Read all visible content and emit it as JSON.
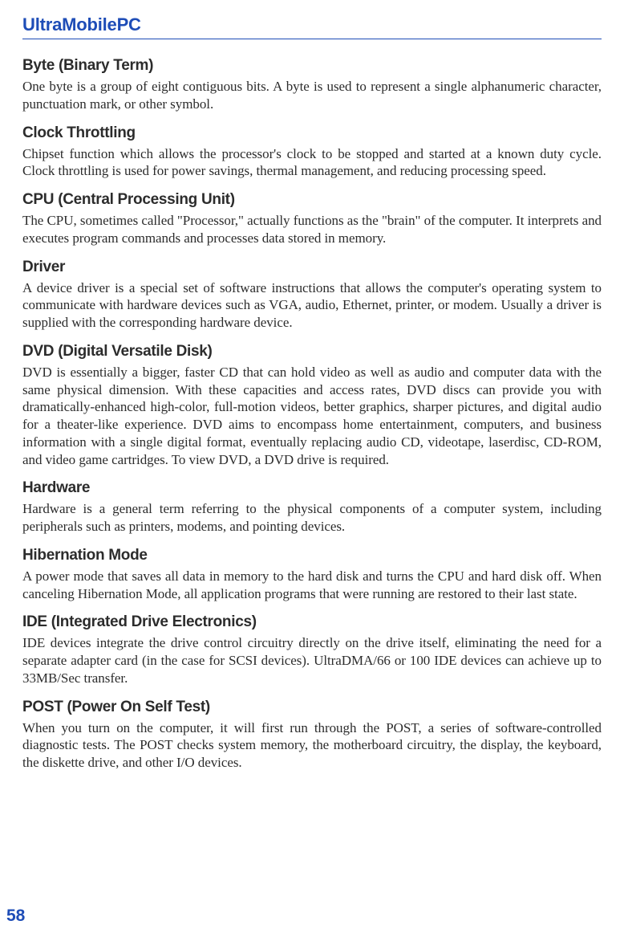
{
  "document": {
    "title": "UltraMobilePC",
    "page_number": "58",
    "title_color": "#1e4db7",
    "body_color": "#2c2c2c",
    "background_color": "#ffffff",
    "title_font_size": 22,
    "heading_font_size": 19,
    "body_font_size": 17,
    "entries": [
      {
        "heading": "Byte (Binary Term)",
        "body": "One byte is a group of eight contiguous bits. A byte is used to represent a single alphanumeric character, punctuation mark, or other symbol."
      },
      {
        "heading": "Clock Throttling",
        "body": "Chipset function which allows the processor's clock to be stopped and started at a known duty cycle. Clock throttling is used for power savings, thermal management, and reducing processing speed."
      },
      {
        "heading": "CPU (Central Processing Unit)",
        "body": "The CPU, sometimes called \"Processor,\" actually functions as the \"brain\" of the computer. It interprets and executes program commands and processes data stored in memory."
      },
      {
        "heading": "Driver",
        "body": "A device driver is a special set of software instructions that allows the computer's operating system to communicate with hardware devices such as VGA, audio, Ethernet, printer, or modem. Usually a driver is supplied with the corresponding hardware device."
      },
      {
        "heading": "DVD (Digital Versatile Disk)",
        "body": "DVD is essentially a bigger, faster CD that can hold video as well as audio and computer data with the same physical dimension. With these capacities and access rates, DVD discs can provide you with dramatically-enhanced high-color, full-motion videos, better graphics, sharper pictures, and digital audio for a theater-like experience. DVD aims to encompass home entertainment, computers, and business information with a single digital format, eventually replacing audio CD, videotape, laserdisc, CD-ROM, and video game cartridges. To view DVD, a DVD drive is required."
      },
      {
        "heading": "Hardware",
        "body": "Hardware is a general term referring to the physical components of a computer system, including peripherals such as printers, modems, and pointing devices."
      },
      {
        "heading": "Hibernation Mode",
        "body": "A power mode that saves all data in memory to the hard disk and turns the CPU and hard disk off. When canceling Hibernation Mode, all application programs that were running are restored to their last state."
      },
      {
        "heading": "IDE (Integrated Drive Electronics)",
        "body": "IDE devices integrate the drive control circuitry directly on the drive itself, eliminating the need for a separate adapter card (in the case for SCSI devices). UltraDMA/66 or 100 IDE devices can achieve up to 33MB/Sec transfer."
      },
      {
        "heading": "POST (Power On Self Test)",
        "body": "When you turn on the computer, it will first run through the POST, a series of software-controlled diagnostic tests. The POST checks system memory, the motherboard circuitry, the display, the keyboard, the diskette drive, and other I/O devices."
      }
    ]
  }
}
